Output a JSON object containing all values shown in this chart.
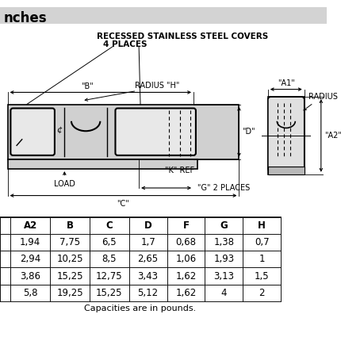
{
  "title": "nches",
  "header_bg": "#d3d3d3",
  "diagram_note_line1": "RECESSED STAINLESS STEEL COVERS",
  "diagram_note_line2": "4 PLACES",
  "table_headers": [
    "",
    "A2",
    "B",
    "C",
    "D",
    "F",
    "G",
    "H"
  ],
  "table_rows": [
    [
      "",
      "1,94",
      "7,75",
      "6,5",
      "1,7",
      "0,68",
      "1,38",
      "0,7"
    ],
    [
      "",
      "2,94",
      "10,25",
      "8,5",
      "2,65",
      "1,06",
      "1,93",
      "1"
    ],
    [
      "",
      "3,86",
      "15,25",
      "12,75",
      "3,43",
      "1,62",
      "3,13",
      "1,5"
    ],
    [
      "",
      "5,8",
      "19,25",
      "15,25",
      "5,12",
      "1,62",
      "4",
      "2"
    ]
  ],
  "table_footer": "Capacities are in pounds.",
  "bg_color": "#ffffff",
  "header_color": "#d3d3d3",
  "diagram_bg": "#f0f0f0",
  "text_color": "#000000",
  "body_fill": "#d0d0d0",
  "cover_fill": "#e8e8e8",
  "endview_fill": "#d0d0d0"
}
